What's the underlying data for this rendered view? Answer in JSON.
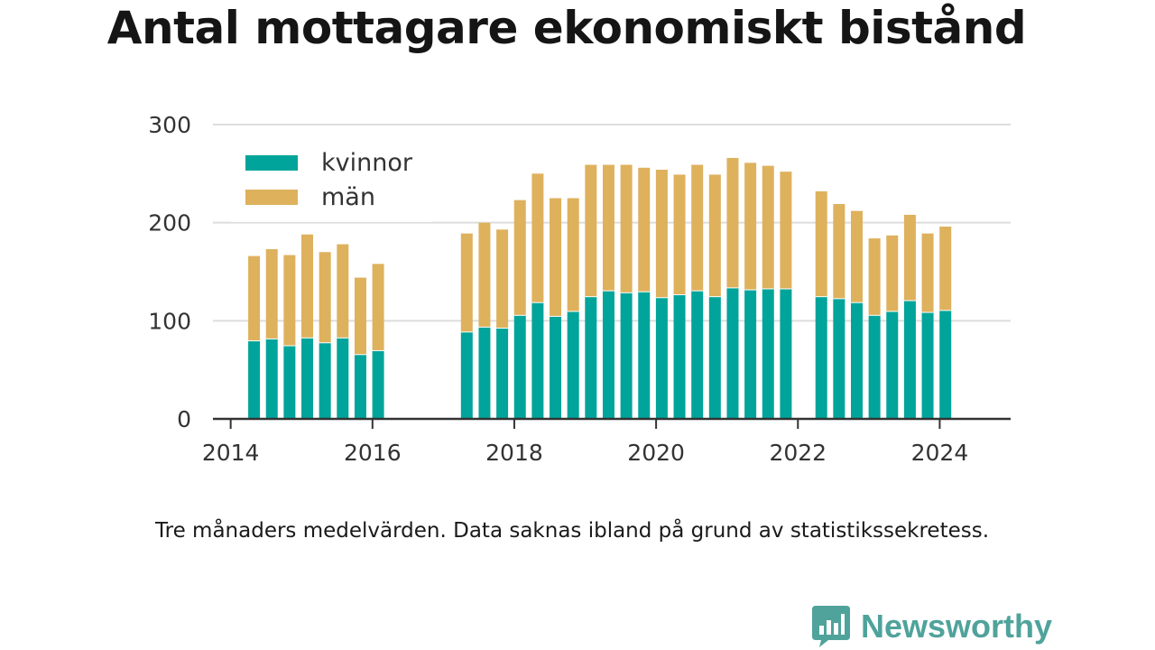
{
  "title": "Antal mottagare ekonomiskt bistånd",
  "note": "Tre månaders medelvärden. Data saknas ibland på grund av statistikssekretess.",
  "brand": {
    "name": "Newsworthy"
  },
  "colors": {
    "kvinnor": "#00a49a",
    "man": "#deb15d",
    "grid": "#dddddd",
    "axis": "#333333",
    "text": "#333333",
    "brand": "#4fa39b"
  },
  "chart_data": {
    "type": "bar",
    "stacked": true,
    "ylim": [
      0,
      300
    ],
    "yticks": [
      0,
      100,
      200,
      300
    ],
    "xlim": [
      2013.75,
      2025.0
    ],
    "xticks": [
      2014,
      2016,
      2018,
      2020,
      2022,
      2024
    ],
    "legend": {
      "position": "top-left"
    },
    "grid": true,
    "x": [
      2014.33,
      2014.58,
      2014.83,
      2015.08,
      2015.33,
      2015.58,
      2015.83,
      2016.08,
      2017.33,
      2017.58,
      2017.83,
      2018.08,
      2018.33,
      2018.58,
      2018.83,
      2019.08,
      2019.33,
      2019.58,
      2019.83,
      2020.08,
      2020.33,
      2020.58,
      2020.83,
      2021.08,
      2021.33,
      2021.58,
      2021.83,
      2022.33,
      2022.58,
      2022.83,
      2023.08,
      2023.33,
      2023.58,
      2023.83,
      2024.08
    ],
    "series": [
      {
        "name": "kvinnor",
        "values": [
          80,
          82,
          75,
          83,
          78,
          83,
          66,
          70,
          89,
          94,
          93,
          106,
          119,
          105,
          110,
          125,
          131,
          129,
          130,
          124,
          127,
          131,
          125,
          134,
          132,
          133,
          133,
          125,
          123,
          119,
          106,
          110,
          121,
          109,
          111
        ]
      },
      {
        "name": "män",
        "values": [
          86,
          91,
          92,
          105,
          92,
          95,
          78,
          88,
          100,
          106,
          100,
          117,
          131,
          120,
          115,
          134,
          128,
          130,
          126,
          130,
          122,
          128,
          124,
          132,
          129,
          125,
          119,
          107,
          96,
          93,
          78,
          77,
          87,
          80,
          85
        ]
      }
    ]
  }
}
